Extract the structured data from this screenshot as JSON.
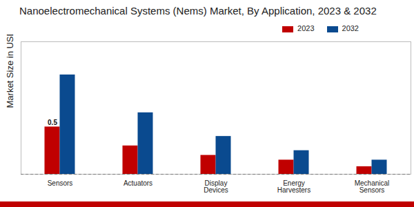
{
  "chart_data": {
    "type": "bar",
    "title": "Nanoelectromechanical Systems (Nems) Market, By Application, 2023 & 2032",
    "y_label": "Market Size in USD Billion",
    "categories": [
      "Sensors",
      "Actuators",
      "Display Devices",
      "Energy Harvesters",
      "Mechanical Sensors"
    ],
    "series": [
      {
        "name": "2023",
        "color": "#c00000",
        "values": [
          0.5,
          0.3,
          0.2,
          0.15,
          0.08
        ],
        "value_labels": [
          "0.5",
          null,
          null,
          null,
          null
        ]
      },
      {
        "name": "2032",
        "color": "#0a4a8f",
        "values": [
          1.05,
          0.65,
          0.4,
          0.25,
          0.15
        ]
      }
    ],
    "ylim": [
      0,
      1.4
    ],
    "tick_labels": "x",
    "legend": "top-right",
    "data_labels": true,
    "grid": false
  }
}
